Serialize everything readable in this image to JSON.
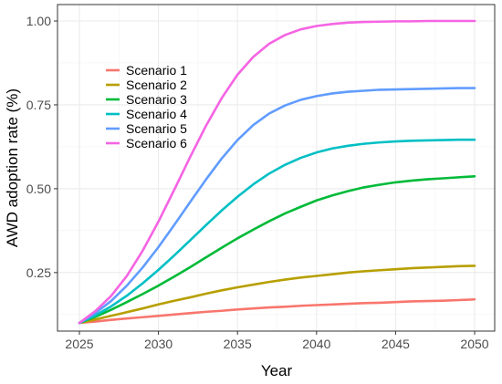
{
  "chart_data": {
    "type": "line",
    "xlabel": "Year",
    "ylabel": "AWD adoption rate (%)",
    "xlim": [
      2025,
      2050
    ],
    "ylim": [
      0.1,
      1.0
    ],
    "x_ticks": [
      2025,
      2030,
      2035,
      2040,
      2045,
      2050
    ],
    "y_ticks": [
      0.25,
      0.5,
      0.75,
      1.0
    ],
    "y_tick_labels": [
      "0.25",
      "0.50",
      "0.75",
      "1.00"
    ],
    "grid": true,
    "legend_position": "top-left, inside plot",
    "x": [
      2025,
      2026,
      2027,
      2028,
      2029,
      2030,
      2031,
      2032,
      2033,
      2034,
      2035,
      2036,
      2037,
      2038,
      2039,
      2040,
      2041,
      2042,
      2043,
      2044,
      2045,
      2046,
      2047,
      2048,
      2049,
      2050
    ],
    "series": [
      {
        "name": "Scenario 1",
        "color": "#F8766D",
        "values": [
          0.1,
          0.104,
          0.109,
          0.113,
          0.117,
          0.121,
          0.125,
          0.129,
          0.133,
          0.136,
          0.14,
          0.143,
          0.146,
          0.148,
          0.151,
          0.153,
          0.155,
          0.157,
          0.159,
          0.16,
          0.162,
          0.164,
          0.165,
          0.166,
          0.168,
          0.17
        ]
      },
      {
        "name": "Scenario 2",
        "color": "#B79F00",
        "values": [
          0.1,
          0.11,
          0.121,
          0.132,
          0.143,
          0.155,
          0.166,
          0.176,
          0.187,
          0.197,
          0.206,
          0.214,
          0.222,
          0.229,
          0.235,
          0.24,
          0.245,
          0.25,
          0.254,
          0.257,
          0.26,
          0.263,
          0.265,
          0.267,
          0.269,
          0.27
        ]
      },
      {
        "name": "Scenario 3",
        "color": "#00BA38",
        "values": [
          0.1,
          0.118,
          0.139,
          0.162,
          0.186,
          0.211,
          0.238,
          0.266,
          0.295,
          0.324,
          0.352,
          0.378,
          0.403,
          0.426,
          0.446,
          0.465,
          0.48,
          0.493,
          0.504,
          0.512,
          0.519,
          0.524,
          0.528,
          0.531,
          0.534,
          0.537
        ]
      },
      {
        "name": "Scenario 4",
        "color": "#00BFC4",
        "values": [
          0.1,
          0.122,
          0.149,
          0.181,
          0.218,
          0.258,
          0.301,
          0.346,
          0.391,
          0.435,
          0.476,
          0.513,
          0.545,
          0.571,
          0.592,
          0.608,
          0.62,
          0.628,
          0.634,
          0.638,
          0.641,
          0.643,
          0.644,
          0.645,
          0.646,
          0.646
        ]
      },
      {
        "name": "Scenario 5",
        "color": "#619CFF",
        "values": [
          0.1,
          0.129,
          0.165,
          0.211,
          0.265,
          0.326,
          0.392,
          0.46,
          0.527,
          0.59,
          0.645,
          0.69,
          0.724,
          0.748,
          0.765,
          0.776,
          0.784,
          0.789,
          0.792,
          0.795,
          0.796,
          0.797,
          0.798,
          0.799,
          0.8,
          0.8
        ]
      },
      {
        "name": "Scenario 6",
        "color": "#F564E3",
        "values": [
          0.1,
          0.135,
          0.18,
          0.24,
          0.315,
          0.402,
          0.497,
          0.594,
          0.687,
          0.77,
          0.84,
          0.893,
          0.932,
          0.958,
          0.975,
          0.985,
          0.991,
          0.995,
          0.997,
          0.998,
          0.999,
          0.999,
          1.0,
          1.0,
          1.0,
          1.0
        ]
      }
    ]
  }
}
